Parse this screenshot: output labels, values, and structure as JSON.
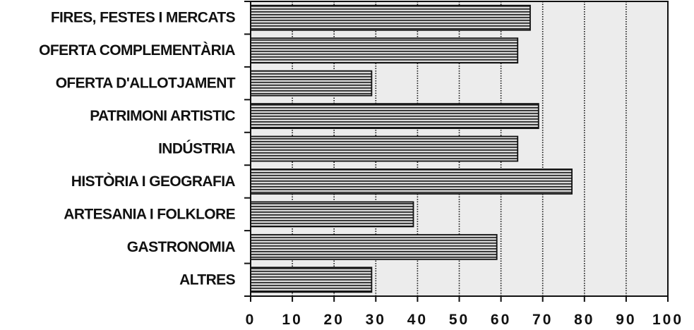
{
  "chart_data": {
    "type": "bar",
    "orientation": "horizontal",
    "categories": [
      "FIRES, FESTES I MERCATS",
      "OFERTA COMPLEMENTÀRIA",
      "OFERTA D'ALLOTJAMENT",
      "PATRIMONI ARTISTIC",
      "INDÚSTRIA",
      "HISTÒRIA I GEOGRAFIA",
      "ARTESANIA I FOLKLORE",
      "GASTRONOMIA",
      "ALTRES"
    ],
    "values": [
      67,
      64,
      29,
      69,
      64,
      77,
      39,
      59,
      29
    ],
    "xlim": [
      0,
      100
    ],
    "x_ticks": [
      "0",
      "10",
      "20",
      "30",
      "40",
      "50",
      "60",
      "70",
      "80",
      "90",
      "100"
    ],
    "grid": "vertical dotted lines at every tick",
    "bar_fill": "horizontal stripes",
    "colors": {
      "background": "#ffffff",
      "plot_background": "#ececec",
      "bar_stripe_dark": "#1a1a1a",
      "bar_stripe_light": "#d8d8d8",
      "axis": "#111111"
    }
  }
}
